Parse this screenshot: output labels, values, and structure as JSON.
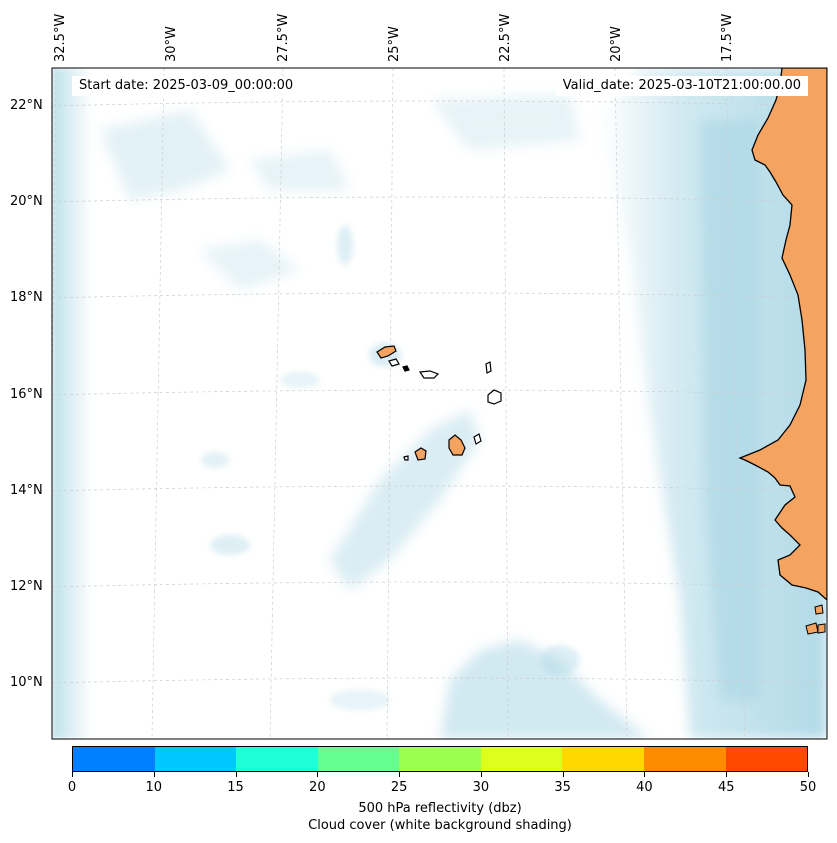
{
  "map": {
    "start_date": "Start date: 2025-03-09_00:00:00",
    "valid_date": "Valid_date: 2025-03-10T21:00:00.00",
    "lon_ticks": [
      "32.5°W",
      "30°W",
      "27.5°W",
      "25°W",
      "22.5°W",
      "20°W",
      "17.5°W"
    ],
    "lat_ticks": [
      "22°N",
      "20°N",
      "18°N",
      "16°N",
      "14°N",
      "12°N",
      "10°N"
    ],
    "colors": {
      "land": "#f4a460",
      "cloud": "#add8e6",
      "coastline": "#000000",
      "gridline": "#cccccc"
    }
  },
  "colorbar": {
    "ticks": [
      "0",
      "10",
      "15",
      "20",
      "25",
      "30",
      "35",
      "40",
      "45",
      "50"
    ],
    "colors": [
      "#0080ff",
      "#00c8ff",
      "#1effd8",
      "#64ff90",
      "#9cff50",
      "#dcff1e",
      "#ffd800",
      "#ff8c00",
      "#ff4800"
    ],
    "label_line1": "500 hPa reflectivity (dbz)",
    "label_line2": "Cloud cover (white background shading)"
  }
}
